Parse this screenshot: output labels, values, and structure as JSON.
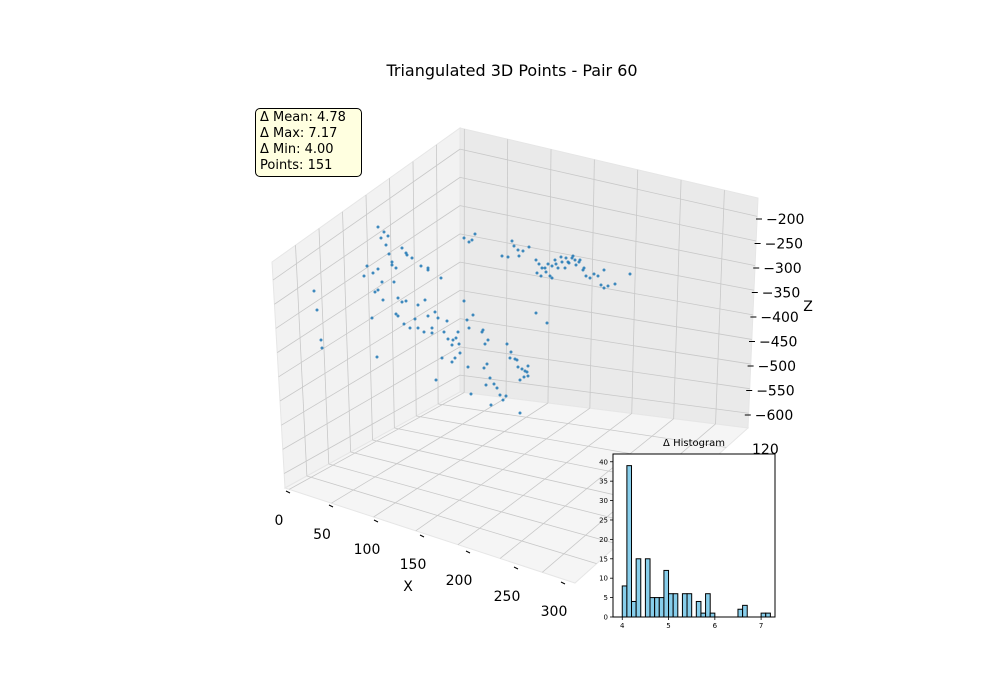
{
  "chart_data": [
    {
      "type": "scatter3d",
      "title": "Triangulated 3D Points - Pair 60",
      "xlabel": "X",
      "ylabel": "",
      "zlabel": "Z",
      "x_ticks": [
        "0",
        "50",
        "100",
        "150",
        "200",
        "250",
        "300"
      ],
      "y_ticks": [
        "120"
      ],
      "z_ticks": [
        "−200",
        "−250",
        "−300",
        "−350",
        "−400",
        "−450",
        "−500",
        "−550",
        "−600"
      ],
      "xlim": [
        0,
        300
      ],
      "zlim": [
        -600,
        -200
      ],
      "grid": true,
      "point_color": "#1f77b4",
      "stats": {
        "mean": "Δ Mean: 4.78",
        "max": "Δ Max: 7.17",
        "min": "Δ Min: 4.00",
        "points": "Points: 151"
      }
    },
    {
      "type": "bar",
      "title": "Δ Histogram",
      "xlim": [
        3.8,
        7.3
      ],
      "ylim": [
        0,
        42
      ],
      "x_ticks": [
        "4",
        "5",
        "6",
        "7"
      ],
      "y_ticks": [
        "0",
        "5",
        "10",
        "15",
        "20",
        "25",
        "30",
        "35",
        "40"
      ],
      "bin_width": 0.1,
      "bin_starts": [
        4.0,
        4.1,
        4.2,
        4.3,
        4.4,
        4.5,
        4.6,
        4.7,
        4.8,
        4.9,
        5.0,
        5.1,
        5.2,
        5.3,
        5.4,
        5.5,
        5.6,
        5.7,
        5.8,
        5.9,
        6.0,
        6.1,
        6.2,
        6.3,
        6.4,
        6.5,
        6.6,
        6.7,
        6.8,
        6.9,
        7.0,
        7.1
      ],
      "values": [
        8,
        39,
        4,
        15,
        0,
        15,
        5,
        5,
        5,
        12,
        6,
        6,
        0,
        6,
        6,
        0,
        4,
        1,
        6,
        1,
        0,
        0,
        0,
        0,
        0,
        2,
        3,
        0,
        0,
        0,
        1,
        1
      ],
      "bar_color": "#87ceeb",
      "edge_color": "#000000"
    }
  ]
}
